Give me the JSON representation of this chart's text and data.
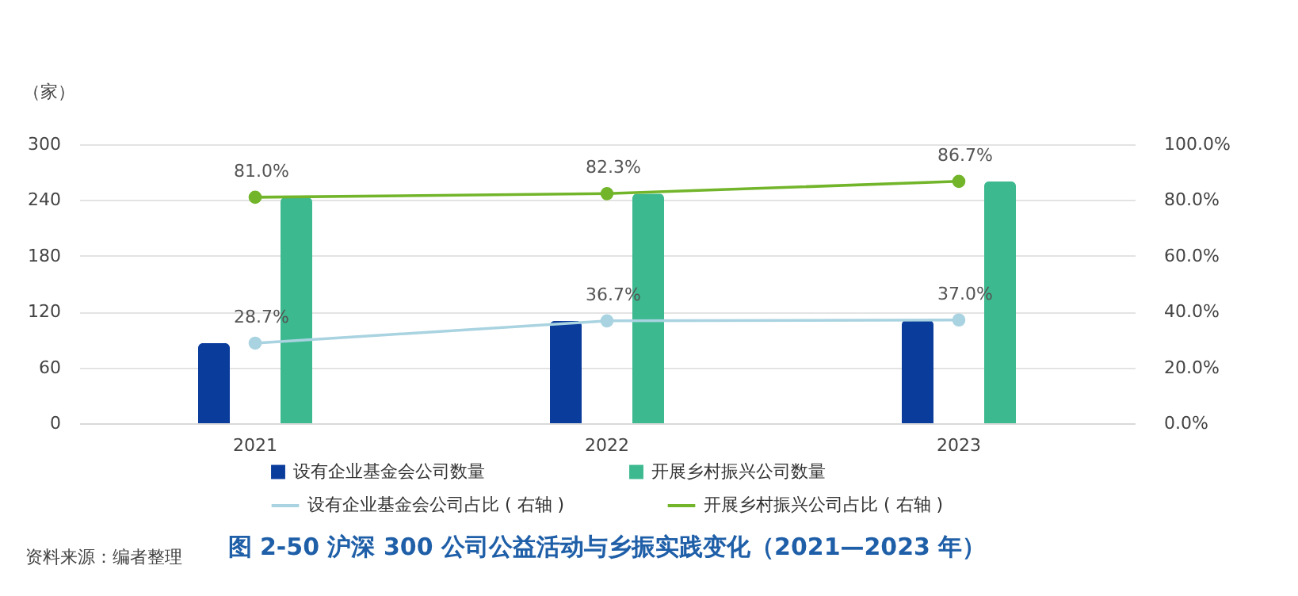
{
  "chart_data": {
    "type": "bar",
    "title": "图 2-50  沪深 300 公司公益活动与乡振实践变化（2021—2023 年）",
    "ylabel": "（家）",
    "categories": [
      "2021",
      "2022",
      "2023"
    ],
    "series": [
      {
        "name": "设有企业基金会公司数量",
        "color": "#0a3c9c",
        "values": [
          86,
          110,
          111
        ]
      },
      {
        "name": "开展乡村振兴公司数量",
        "color": "#3cb98f",
        "values": [
          243,
          247,
          260
        ]
      },
      {
        "name": "设有企业基金会公司占比 ( 右轴 )",
        "type": "line",
        "axis": "y2",
        "color": "#a9d3e0",
        "values": [
          28.7,
          36.7,
          37.0
        ],
        "value_labels": [
          "28.7%",
          "36.7%",
          "37.0%"
        ]
      },
      {
        "name": "开展乡村振兴公司占比 ( 右轴 )",
        "type": "line",
        "axis": "y2",
        "color": "#72b52a",
        "values": [
          81.0,
          82.3,
          86.7
        ],
        "value_labels": [
          "81.0%",
          "82.3%",
          "86.7%"
        ]
      }
    ],
    "ylim": [
      0,
      300
    ],
    "yticks": [
      0,
      60,
      120,
      180,
      240,
      300
    ],
    "y2lim": [
      0,
      100
    ],
    "y2ticks": [
      {
        "value": 0,
        "label": "0.0%"
      },
      {
        "value": 20,
        "label": "20.0%"
      },
      {
        "value": 40,
        "label": "40.0%"
      },
      {
        "value": 60,
        "label": "60.0%"
      },
      {
        "value": 80,
        "label": "80.0%"
      },
      {
        "value": 100,
        "label": "100.0%"
      }
    ],
    "grid": "y",
    "legend": "bottom",
    "marker": "circle",
    "annotations": [
      "资料来源：编者整理"
    ]
  }
}
